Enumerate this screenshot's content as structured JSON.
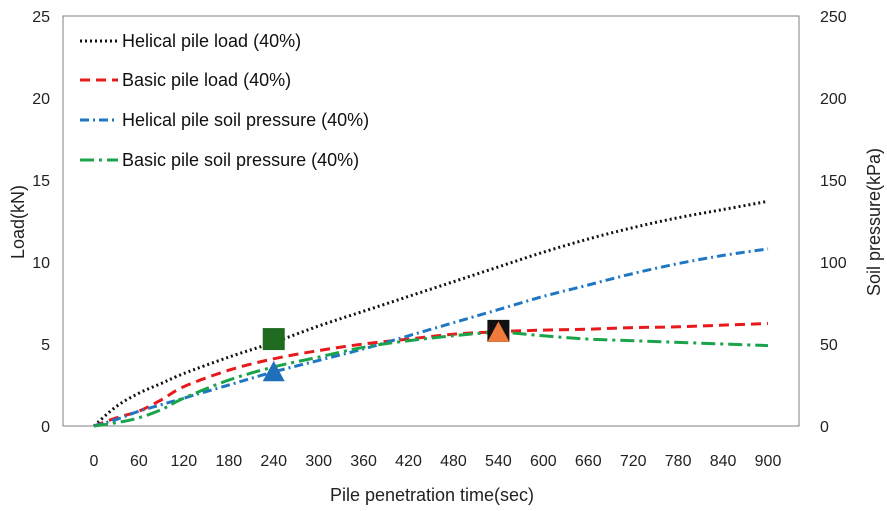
{
  "chart_data": {
    "type": "line",
    "title": "",
    "xlabel": "Pile penetration time(sec)",
    "ylabel": "Load(kN)",
    "y2label": "Soil pressure(kPa)",
    "xlim": [
      0,
      900
    ],
    "ylim": [
      0,
      25
    ],
    "y2lim": [
      0,
      250
    ],
    "xticks": [
      "0",
      "60",
      "120",
      "180",
      "240",
      "300",
      "360",
      "420",
      "480",
      "540",
      "600",
      "660",
      "720",
      "780",
      "840",
      "900"
    ],
    "yticks": [
      "0",
      "5",
      "10",
      "15",
      "20",
      "25"
    ],
    "y2ticks": [
      "0",
      "50",
      "100",
      "150",
      "200",
      "250"
    ],
    "grid": false,
    "legend_position": "top-left",
    "series": [
      {
        "name": "Helical pile load (40%)",
        "axis": "left",
        "color": "#111111",
        "style": "dotted",
        "x": [
          0,
          30,
          60,
          90,
          120,
          180,
          240,
          300,
          360,
          420,
          480,
          540,
          600,
          660,
          720,
          780,
          840,
          900
        ],
        "y": [
          0,
          1.2,
          2.0,
          2.6,
          3.2,
          4.2,
          5.1,
          6.1,
          7.0,
          7.9,
          8.8,
          9.7,
          10.6,
          11.4,
          12.1,
          12.7,
          13.2,
          13.7
        ]
      },
      {
        "name": "Basic pile load (40%)",
        "axis": "left",
        "color": "#e8191b",
        "style": "dashed",
        "x": [
          0,
          30,
          60,
          90,
          120,
          180,
          240,
          300,
          360,
          420,
          480,
          540,
          600,
          660,
          720,
          780,
          840,
          900
        ],
        "y": [
          0,
          0.5,
          0.9,
          1.6,
          2.4,
          3.4,
          4.1,
          4.6,
          5.0,
          5.3,
          5.6,
          5.75,
          5.85,
          5.9,
          6.0,
          6.05,
          6.15,
          6.25
        ]
      },
      {
        "name": "Helical pile soil pressure (40%)",
        "axis": "right",
        "color": "#1f77c4",
        "style": "dashdot",
        "x": [
          0,
          30,
          60,
          90,
          120,
          180,
          240,
          300,
          360,
          420,
          480,
          540,
          600,
          660,
          720,
          780,
          840,
          900
        ],
        "y": [
          0,
          4,
          9,
          13,
          17,
          25,
          33,
          40,
          47,
          55,
          63,
          71,
          79,
          86,
          93,
          99,
          104,
          108
        ]
      },
      {
        "name": "Basic pile soil pressure (40%)",
        "axis": "right",
        "color": "#1aa34a",
        "style": "longdashdot",
        "x": [
          0,
          30,
          60,
          90,
          120,
          180,
          240,
          300,
          360,
          420,
          480,
          540,
          600,
          660,
          720,
          780,
          840,
          900
        ],
        "y": [
          0,
          2,
          5,
          10,
          17,
          28,
          36,
          42,
          48,
          52,
          55,
          57,
          55,
          53,
          52,
          51,
          50,
          49
        ]
      }
    ],
    "markers": [
      {
        "shape": "square",
        "color": "#1f6b1f",
        "x": 240,
        "value": 5.3,
        "axis": "left"
      },
      {
        "shape": "triangle",
        "color": "#1f6fba",
        "x": 240,
        "value": 33,
        "axis": "right"
      },
      {
        "shape": "square",
        "color": "#111111",
        "x": 540,
        "value": 5.8,
        "axis": "left"
      },
      {
        "shape": "triangle",
        "color": "#f07a3a",
        "x": 540,
        "value": 57,
        "axis": "right"
      }
    ]
  }
}
